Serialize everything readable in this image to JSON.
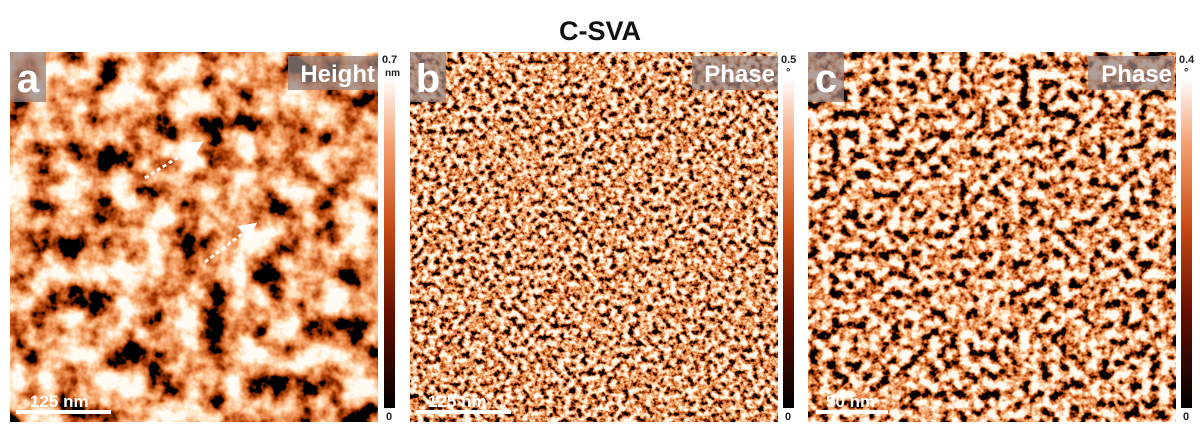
{
  "title": "C-SVA",
  "panels": [
    {
      "letter": "a",
      "label": "Height",
      "colorbar": {
        "max": 0.7,
        "unit": "nm",
        "min": 0
      },
      "scale_bar": "125 nm"
    },
    {
      "letter": "b",
      "label": "Phase",
      "colorbar": {
        "max": 0.5,
        "unit": "°",
        "min": 0
      },
      "scale_bar": "125 nm"
    },
    {
      "letter": "c",
      "label": "Phase",
      "colorbar": {
        "max": 0.4,
        "unit": "°",
        "min": 0
      },
      "scale_bar": "50 nm"
    }
  ]
}
